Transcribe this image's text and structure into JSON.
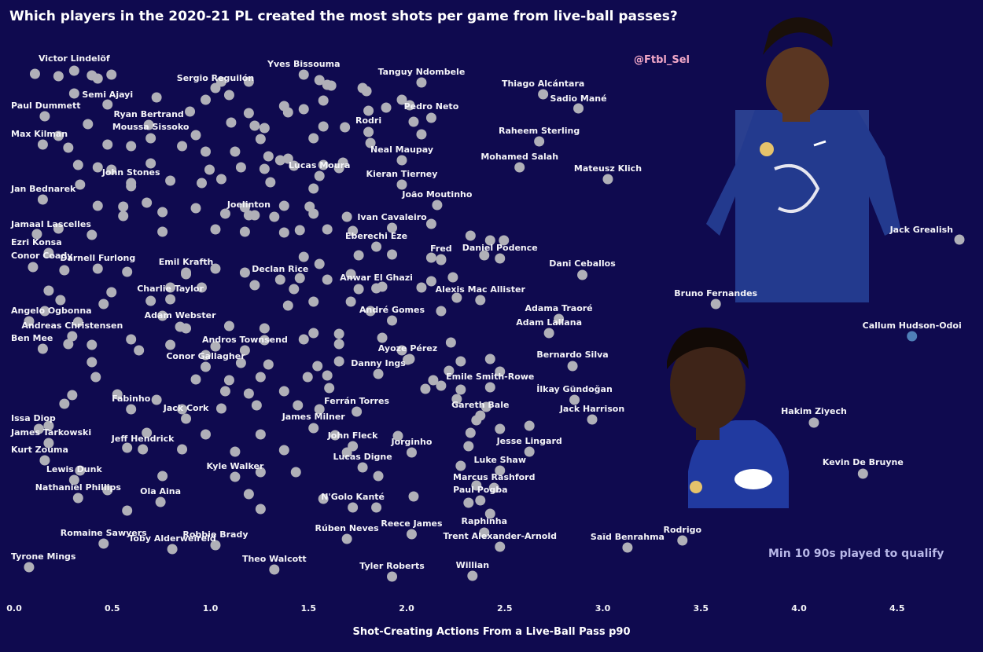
{
  "colors": {
    "background": "#0f0a4f",
    "point": "#b0b0b8",
    "highlight": "#4f7fb8",
    "text": "#f4f4f8",
    "credit": "#f2a8c8",
    "note": "#b8b8e8"
  },
  "chart_data": {
    "type": "scatter",
    "title": "Which players in the 2020-21 PL created the most shots per game from live-ball passes?",
    "xlabel": "Shot-Creating Actions From a Live-Ball Pass p90",
    "ylabel": "",
    "xlim": [
      0.0,
      4.9
    ],
    "xticks": [
      "0.0",
      "0.5",
      "1.0",
      "1.5",
      "2.0",
      "2.5",
      "3.0",
      "3.5",
      "4.0",
      "4.5"
    ],
    "y_axis": "jitter (no scale)",
    "grid": false,
    "credit": "@Ftbl_Sel",
    "note": "Min 10 90s played to qualify",
    "highlighted_player": "Callum Hudson-Odoi",
    "labeled_points": [
      {
        "name": "Victor Lindelöf",
        "x": 0.33
      },
      {
        "name": "Yves Bissouma",
        "x": 1.5
      },
      {
        "name": "Sergio Reguilón",
        "x": 1.05
      },
      {
        "name": "Tanguy Ndombele",
        "x": 2.1
      },
      {
        "name": "Thiago Alcántara",
        "x": 2.72
      },
      {
        "name": "Semi Ajayi",
        "x": 0.5
      },
      {
        "name": "Sadio Mané",
        "x": 2.9
      },
      {
        "name": "Paul Dummett",
        "x": 0.18
      },
      {
        "name": "Pedro Neto",
        "x": 2.15
      },
      {
        "name": "Ryan Bertrand",
        "x": 0.71
      },
      {
        "name": "Rodri",
        "x": 1.83
      },
      {
        "name": "Moussa Sissoko",
        "x": 0.72
      },
      {
        "name": "Raheem Sterling",
        "x": 2.7
      },
      {
        "name": "Max Kilman",
        "x": 0.17
      },
      {
        "name": "Neal Maupay",
        "x": 2.0
      },
      {
        "name": "Mohamed Salah",
        "x": 2.6
      },
      {
        "name": "Mateusz Klich",
        "x": 3.05
      },
      {
        "name": "Lucas Moura",
        "x": 1.58
      },
      {
        "name": "Kieran Tierney",
        "x": 2.0
      },
      {
        "name": "John Stones",
        "x": 0.62
      },
      {
        "name": "Jan Bednarek",
        "x": 0.17
      },
      {
        "name": "João Moutinho",
        "x": 2.18
      },
      {
        "name": "Joelinton",
        "x": 1.22
      },
      {
        "name": "Ivan Cavaleiro",
        "x": 1.95
      },
      {
        "name": "Jamaal Lascelles",
        "x": 0.14
      },
      {
        "name": "Jack Grealish",
        "x": 4.9
      },
      {
        "name": "Eberechi Eze",
        "x": 1.87
      },
      {
        "name": "Ezri Konsa",
        "x": 0.2
      },
      {
        "name": "Fred",
        "x": 2.2
      },
      {
        "name": "Daniel Podence",
        "x": 2.5
      },
      {
        "name": "Conor Coady",
        "x": 0.12
      },
      {
        "name": "Darnell Furlong",
        "x": 0.45
      },
      {
        "name": "Emil Krafth",
        "x": 0.9
      },
      {
        "name": "Dani Ceballos",
        "x": 2.92
      },
      {
        "name": "Declan Rice",
        "x": 1.38
      },
      {
        "name": "Anwar El Ghazi",
        "x": 1.87
      },
      {
        "name": "Charlie Taylor",
        "x": 0.82
      },
      {
        "name": "Alexis Mac Allister",
        "x": 2.4
      },
      {
        "name": "Bruno Fernandes",
        "x": 3.6
      },
      {
        "name": "Adama Traoré",
        "x": 2.8
      },
      {
        "name": "Angelo Ogbonna",
        "x": 0.1
      },
      {
        "name": "André Gomes",
        "x": 1.95
      },
      {
        "name": "Adam Webster",
        "x": 0.87
      },
      {
        "name": "Callum Hudson-Odoi",
        "x": 4.6
      },
      {
        "name": "Andreas Christensen",
        "x": 0.32
      },
      {
        "name": "Adam Lallana",
        "x": 2.75
      },
      {
        "name": "Ben Mee",
        "x": 0.17
      },
      {
        "name": "Andros Townsend",
        "x": 1.2
      },
      {
        "name": "Ayoze Pérez",
        "x": 2.03
      },
      {
        "name": "Bernardo Silva",
        "x": 2.87
      },
      {
        "name": "Conor Gallagher",
        "x": 1.0
      },
      {
        "name": "Danny Ings",
        "x": 1.88
      },
      {
        "name": "Emile Smith-Rowe",
        "x": 2.45
      },
      {
        "name": "İlkay Gündoğan",
        "x": 2.88
      },
      {
        "name": "Fabinho",
        "x": 0.62
      },
      {
        "name": "Ferrán Torres",
        "x": 1.77
      },
      {
        "name": "Jack Cork",
        "x": 0.9
      },
      {
        "name": "Gareth Bale",
        "x": 2.4
      },
      {
        "name": "Jack Harrison",
        "x": 2.97
      },
      {
        "name": "Hakim Ziyech",
        "x": 4.1
      },
      {
        "name": "Issa Diop",
        "x": 0.15
      },
      {
        "name": "James Milner",
        "x": 1.55
      },
      {
        "name": "James Tarkowski",
        "x": 0.2
      },
      {
        "name": "John Fleck",
        "x": 1.75
      },
      {
        "name": "Jeff Hendrick",
        "x": 0.68
      },
      {
        "name": "Jorginho",
        "x": 2.05
      },
      {
        "name": "Jesse Lingard",
        "x": 2.65
      },
      {
        "name": "Kurt Zouma",
        "x": 0.18
      },
      {
        "name": "Lucas Digne",
        "x": 1.8
      },
      {
        "name": "Kevin De Bruyne",
        "x": 4.35
      },
      {
        "name": "Luke Shaw",
        "x": 2.5
      },
      {
        "name": "Lewis Dunk",
        "x": 0.33
      },
      {
        "name": "Kyle Walker",
        "x": 1.15
      },
      {
        "name": "Marcus Rashford",
        "x": 2.47
      },
      {
        "name": "Nathaniel Phillips",
        "x": 0.35
      },
      {
        "name": "Ola Aina",
        "x": 0.77
      },
      {
        "name": "Paul Pogba",
        "x": 2.4
      },
      {
        "name": "N'Golo Kanté",
        "x": 1.75
      },
      {
        "name": "Raphinha",
        "x": 2.42
      },
      {
        "name": "Reece James",
        "x": 2.05
      },
      {
        "name": "Rodrigo",
        "x": 3.43
      },
      {
        "name": "Romaine Sawyers",
        "x": 0.48
      },
      {
        "name": "Robbie Brady",
        "x": 1.05
      },
      {
        "name": "Rúben Neves",
        "x": 1.72
      },
      {
        "name": "Trent Alexander-Arnold",
        "x": 2.5
      },
      {
        "name": "Saïd Benrahma",
        "x": 3.15
      },
      {
        "name": "Toby Alderweireld",
        "x": 0.83
      },
      {
        "name": "Theo Walcott",
        "x": 1.35
      },
      {
        "name": "Tyrone Mings",
        "x": 0.1
      },
      {
        "name": "Tyler Roberts",
        "x": 1.95
      },
      {
        "name": "Willian",
        "x": 2.36
      }
    ],
    "unlabeled_points": [
      {
        "x": 0.13
      },
      {
        "x": 0.25
      },
      {
        "x": 0.42
      },
      {
        "x": 0.45
      },
      {
        "x": 0.52
      },
      {
        "x": 1.08
      },
      {
        "x": 1.22
      },
      {
        "x": 1.58
      },
      {
        "x": 1.62
      },
      {
        "x": 1.64
      },
      {
        "x": 1.8
      },
      {
        "x": 1.82
      },
      {
        "x": 0.33
      },
      {
        "x": 0.75
      },
      {
        "x": 1.0
      },
      {
        "x": 1.12
      },
      {
        "x": 1.4
      },
      {
        "x": 1.6
      },
      {
        "x": 2.0
      },
      {
        "x": 2.04
      },
      {
        "x": 0.92
      },
      {
        "x": 1.22
      },
      {
        "x": 1.42
      },
      {
        "x": 1.5
      },
      {
        "x": 1.83
      },
      {
        "x": 1.92
      },
      {
        "x": 2.06
      },
      {
        "x": 0.4
      },
      {
        "x": 1.13
      },
      {
        "x": 1.25
      },
      {
        "x": 1.3
      },
      {
        "x": 1.6
      },
      {
        "x": 1.71
      },
      {
        "x": 2.1
      },
      {
        "x": 0.25
      },
      {
        "x": 0.95
      },
      {
        "x": 1.28
      },
      {
        "x": 1.55
      },
      {
        "x": 1.84
      },
      {
        "x": 0.3
      },
      {
        "x": 0.5
      },
      {
        "x": 0.62
      },
      {
        "x": 0.88
      },
      {
        "x": 1.0
      },
      {
        "x": 1.15
      },
      {
        "x": 1.32
      },
      {
        "x": 1.38
      },
      {
        "x": 1.42
      },
      {
        "x": 1.7
      },
      {
        "x": 0.35
      },
      {
        "x": 0.45
      },
      {
        "x": 0.52
      },
      {
        "x": 0.72
      },
      {
        "x": 1.02
      },
      {
        "x": 1.18
      },
      {
        "x": 1.3
      },
      {
        "x": 1.45
      },
      {
        "x": 1.6
      },
      {
        "x": 1.68
      },
      {
        "x": 0.36
      },
      {
        "x": 0.62
      },
      {
        "x": 0.82
      },
      {
        "x": 0.98
      },
      {
        "x": 1.08
      },
      {
        "x": 1.33
      },
      {
        "x": 1.55
      },
      {
        "x": 0.45
      },
      {
        "x": 0.58
      },
      {
        "x": 0.7
      },
      {
        "x": 0.95
      },
      {
        "x": 1.2
      },
      {
        "x": 1.4
      },
      {
        "x": 1.53
      },
      {
        "x": 0.58
      },
      {
        "x": 0.78
      },
      {
        "x": 1.1
      },
      {
        "x": 1.25
      },
      {
        "x": 1.35
      },
      {
        "x": 1.55
      },
      {
        "x": 1.72
      },
      {
        "x": 2.15
      },
      {
        "x": 0.25
      },
      {
        "x": 0.42
      },
      {
        "x": 0.78
      },
      {
        "x": 1.05
      },
      {
        "x": 1.2
      },
      {
        "x": 1.4
      },
      {
        "x": 1.48
      },
      {
        "x": 1.62
      },
      {
        "x": 1.75
      },
      {
        "x": 2.35
      },
      {
        "x": 2.45
      },
      {
        "x": 2.52
      },
      {
        "x": 1.95
      },
      {
        "x": 2.2
      },
      {
        "x": 1.5
      },
      {
        "x": 1.58
      },
      {
        "x": 1.78
      },
      {
        "x": 2.15
      },
      {
        "x": 2.42
      },
      {
        "x": 0.28
      },
      {
        "x": 0.6
      },
      {
        "x": 0.9
      },
      {
        "x": 1.05
      },
      {
        "x": 1.2
      },
      {
        "x": 1.48
      },
      {
        "x": 1.62
      },
      {
        "x": 1.74
      },
      {
        "x": 2.15
      },
      {
        "x": 2.26
      },
      {
        "x": 0.2
      },
      {
        "x": 0.52
      },
      {
        "x": 0.82
      },
      {
        "x": 0.98
      },
      {
        "x": 1.25
      },
      {
        "x": 1.45
      },
      {
        "x": 1.78
      },
      {
        "x": 1.9
      },
      {
        "x": 2.1
      },
      {
        "x": 2.28
      },
      {
        "x": 0.26
      },
      {
        "x": 0.48
      },
      {
        "x": 0.72
      },
      {
        "x": 1.42
      },
      {
        "x": 1.55
      },
      {
        "x": 1.74
      },
      {
        "x": 1.84
      },
      {
        "x": 2.2
      },
      {
        "x": 0.18
      },
      {
        "x": 0.35
      },
      {
        "x": 0.78
      },
      {
        "x": 0.9
      },
      {
        "x": 1.12
      },
      {
        "x": 1.3
      },
      {
        "x": 1.55
      },
      {
        "x": 1.68
      },
      {
        "x": 1.9
      },
      {
        "x": 2.25
      },
      {
        "x": 0.3
      },
      {
        "x": 0.42
      },
      {
        "x": 0.62
      },
      {
        "x": 0.82
      },
      {
        "x": 1.05
      },
      {
        "x": 1.3
      },
      {
        "x": 1.5
      },
      {
        "x": 1.68
      },
      {
        "x": 2.0
      },
      {
        "x": 2.04
      },
      {
        "x": 2.3
      },
      {
        "x": 2.45
      },
      {
        "x": 0.42
      },
      {
        "x": 0.66
      },
      {
        "x": 1.0
      },
      {
        "x": 1.18
      },
      {
        "x": 1.32
      },
      {
        "x": 1.57
      },
      {
        "x": 1.68
      },
      {
        "x": 2.24
      },
      {
        "x": 2.5
      },
      {
        "x": 0.44
      },
      {
        "x": 0.95
      },
      {
        "x": 1.12
      },
      {
        "x": 1.28
      },
      {
        "x": 1.52
      },
      {
        "x": 1.62
      },
      {
        "x": 2.16
      },
      {
        "x": 2.2
      },
      {
        "x": 2.3
      },
      {
        "x": 0.32
      },
      {
        "x": 0.55
      },
      {
        "x": 0.75
      },
      {
        "x": 1.1
      },
      {
        "x": 1.22
      },
      {
        "x": 1.4
      },
      {
        "x": 1.63
      },
      {
        "x": 2.12
      },
      {
        "x": 2.28
      },
      {
        "x": 2.43
      },
      {
        "x": 0.28
      },
      {
        "x": 0.88
      },
      {
        "x": 1.08
      },
      {
        "x": 1.26
      },
      {
        "x": 1.47
      },
      {
        "x": 1.58
      },
      {
        "x": 2.38
      },
      {
        "x": 2.65
      },
      {
        "x": 2.35
      },
      {
        "x": 2.5
      },
      {
        "x": 0.2
      },
      {
        "x": 0.7
      },
      {
        "x": 1.0
      },
      {
        "x": 1.28
      },
      {
        "x": 1.66
      },
      {
        "x": 1.98
      },
      {
        "x": 2.34
      },
      {
        "x": 0.6
      },
      {
        "x": 0.88
      },
      {
        "x": 1.15
      },
      {
        "x": 1.4
      },
      {
        "x": 1.72
      },
      {
        "x": 2.3
      },
      {
        "x": 0.36
      },
      {
        "x": 0.78
      },
      {
        "x": 1.28
      },
      {
        "x": 1.46
      },
      {
        "x": 1.88
      },
      {
        "x": 2.38
      },
      {
        "x": 0.5
      },
      {
        "x": 1.22
      },
      {
        "x": 1.6
      },
      {
        "x": 2.06
      },
      {
        "x": 2.34
      },
      {
        "x": 0.6
      },
      {
        "x": 1.28
      },
      {
        "x": 1.87
      },
      {
        "x": 2.45
      }
    ]
  }
}
